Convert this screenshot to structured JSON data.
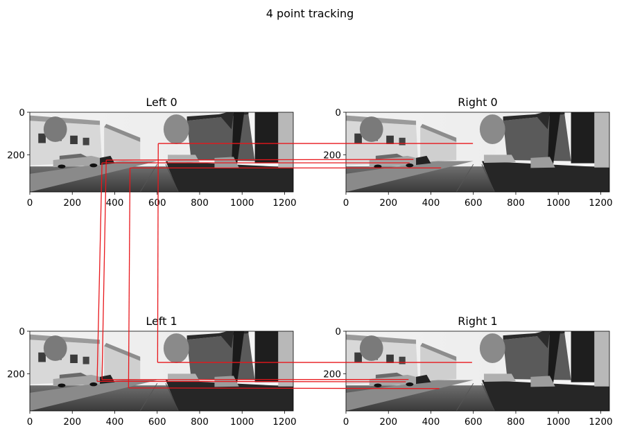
{
  "figure": {
    "title": "4 point tracking"
  },
  "colors": {
    "line": "#e8161b",
    "axis": "#000000",
    "background": "#ffffff"
  },
  "chart_data": [
    {
      "type": "image",
      "title": "Left 0",
      "xticks": [
        0,
        200,
        400,
        600,
        800,
        1000,
        1200
      ],
      "yticks": [
        0,
        200
      ],
      "xlim": [
        0,
        1241
      ],
      "ylim": [
        375,
        0
      ],
      "image": "grayscale street scene (left camera, frame 0)"
    },
    {
      "type": "image",
      "title": "Right 0",
      "xticks": [
        0,
        200,
        400,
        600,
        800,
        1000,
        1200
      ],
      "yticks": [
        0,
        200
      ],
      "xlim": [
        0,
        1241
      ],
      "ylim": [
        375,
        0
      ],
      "image": "grayscale street scene (right camera, frame 0)"
    },
    {
      "type": "image",
      "title": "Left 1",
      "xticks": [
        0,
        200,
        400,
        600,
        800,
        1000,
        1200
      ],
      "yticks": [
        0,
        200
      ],
      "xlim": [
        0,
        1241
      ],
      "ylim": [
        375,
        0
      ],
      "image": "grayscale street scene (left camera, frame 1)"
    },
    {
      "type": "image",
      "title": "Right 1",
      "xticks": [
        0,
        200,
        400,
        600,
        800,
        1000,
        1200
      ],
      "yticks": [
        0,
        200
      ],
      "xlim": [
        0,
        1241
      ],
      "ylim": [
        375,
        0
      ],
      "image": "grayscale street scene (right camera, frame 1)"
    }
  ],
  "tracks": [
    {
      "left0": [
        605,
        147
      ],
      "right0": [
        598,
        147
      ],
      "left1": [
        602,
        147
      ],
      "right1": [
        594,
        147
      ]
    },
    {
      "left0": [
        360,
        225
      ],
      "right0": [
        318,
        222
      ],
      "left1": [
        340,
        228
      ],
      "right1": [
        295,
        227
      ]
    },
    {
      "left0": [
        340,
        238
      ],
      "right0": [
        300,
        238
      ],
      "left1": [
        317,
        236
      ],
      "right1": [
        282,
        238
      ]
    },
    {
      "left0": [
        472,
        262
      ],
      "right0": [
        448,
        262
      ],
      "left1": [
        465,
        267
      ],
      "right1": [
        440,
        270
      ]
    }
  ]
}
